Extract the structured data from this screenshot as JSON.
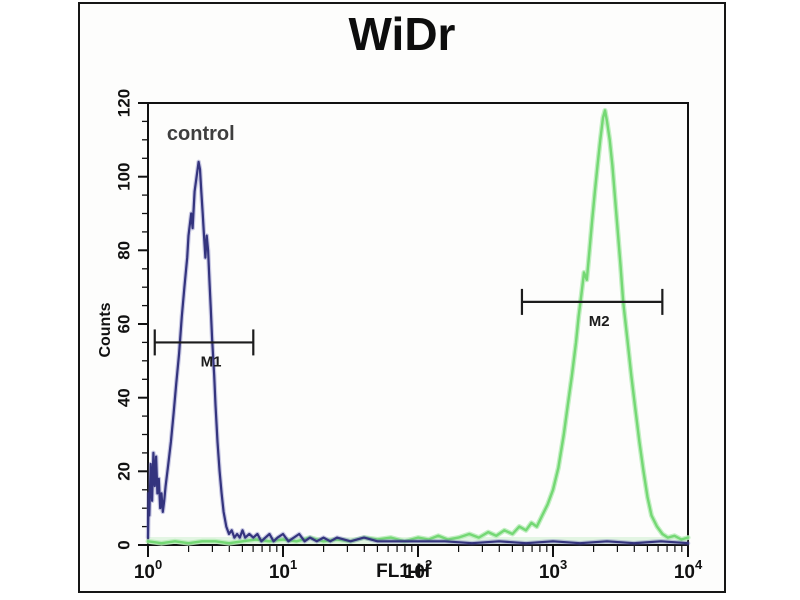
{
  "page": {
    "background": "#ffffff",
    "frame_border_color": "#161616",
    "frame_background": "#fdfdfc",
    "axis_color": "#111111"
  },
  "title": {
    "text": "WiDr"
  },
  "chart_data": {
    "type": "line",
    "subtype": "flow-cytometry-histogram",
    "title": "WiDr",
    "xlabel": "FL1-H",
    "ylabel": "Counts",
    "x_scale": "log10",
    "xlim": [
      1,
      10000
    ],
    "ylim": [
      0,
      120
    ],
    "x_major_tick_base": 10,
    "x_major_tick_exponents": [
      0,
      1,
      2,
      3,
      4
    ],
    "y_major_ticks": [
      0,
      20,
      40,
      60,
      80,
      100,
      120
    ],
    "y_minor_step": 5,
    "grid": false,
    "legend": "none",
    "baseline_band_color": "rgba(150,225,150,0.25)",
    "annotations": [
      {
        "text": "control",
        "x_log10": 0.14,
        "y_counts": 110,
        "color": "#3e3e3e"
      }
    ],
    "markers": [
      {
        "label": "M1",
        "x_from_log10": 0.05,
        "x_to_log10": 0.78,
        "y_counts": 55,
        "color": "#1c1c1c"
      },
      {
        "label": "M2",
        "x_from_log10": 2.77,
        "x_to_log10": 3.81,
        "y_counts": 66,
        "color": "#1c1c1c"
      }
    ],
    "series": [
      {
        "label": "control",
        "color": "#34347e",
        "glow": "rgba(100,100,180,0.35)",
        "points": [
          [
            0.0,
            2
          ],
          [
            0.005,
            14
          ],
          [
            0.01,
            8
          ],
          [
            0.02,
            22
          ],
          [
            0.03,
            12
          ],
          [
            0.04,
            25
          ],
          [
            0.05,
            16
          ],
          [
            0.06,
            24
          ],
          [
            0.07,
            14
          ],
          [
            0.08,
            18
          ],
          [
            0.09,
            10
          ],
          [
            0.1,
            14
          ],
          [
            0.11,
            9
          ],
          [
            0.12,
            12
          ],
          [
            0.13,
            16
          ],
          [
            0.15,
            22
          ],
          [
            0.17,
            28
          ],
          [
            0.19,
            36
          ],
          [
            0.21,
            44
          ],
          [
            0.23,
            52
          ],
          [
            0.25,
            62
          ],
          [
            0.27,
            70
          ],
          [
            0.29,
            78
          ],
          [
            0.3,
            84
          ],
          [
            0.32,
            90
          ],
          [
            0.33,
            86
          ],
          [
            0.345,
            96
          ],
          [
            0.36,
            100
          ],
          [
            0.375,
            104
          ],
          [
            0.385,
            102
          ],
          [
            0.395,
            96
          ],
          [
            0.405,
            90
          ],
          [
            0.415,
            84
          ],
          [
            0.425,
            78
          ],
          [
            0.435,
            84
          ],
          [
            0.445,
            80
          ],
          [
            0.455,
            72
          ],
          [
            0.465,
            64
          ],
          [
            0.475,
            56
          ],
          [
            0.49,
            46
          ],
          [
            0.5,
            38
          ],
          [
            0.515,
            28
          ],
          [
            0.53,
            20
          ],
          [
            0.545,
            14
          ],
          [
            0.56,
            9
          ],
          [
            0.58,
            5
          ],
          [
            0.6,
            3
          ],
          [
            0.62,
            4
          ],
          [
            0.64,
            2
          ],
          [
            0.66,
            3
          ],
          [
            0.68,
            2
          ],
          [
            0.7,
            4
          ],
          [
            0.72,
            2
          ],
          [
            0.75,
            3
          ],
          [
            0.78,
            2
          ],
          [
            0.81,
            3
          ],
          [
            0.84,
            1
          ],
          [
            0.87,
            2
          ],
          [
            0.9,
            3
          ],
          [
            0.93,
            1
          ],
          [
            0.96,
            2
          ],
          [
            1.0,
            3
          ],
          [
            1.04,
            1
          ],
          [
            1.08,
            2
          ],
          [
            1.12,
            3
          ],
          [
            1.16,
            1
          ],
          [
            1.2,
            2
          ],
          [
            1.25,
            1
          ],
          [
            1.3,
            2
          ],
          [
            1.35,
            1
          ],
          [
            1.4,
            2
          ],
          [
            1.5,
            1
          ],
          [
            1.6,
            2
          ],
          [
            1.7,
            1
          ],
          [
            1.8,
            1
          ],
          [
            1.9,
            1
          ],
          [
            2.0,
            1
          ],
          [
            2.2,
            1
          ],
          [
            2.4,
            0.5
          ],
          [
            2.6,
            1
          ],
          [
            2.8,
            0.5
          ],
          [
            3.0,
            1
          ],
          [
            3.2,
            0.5
          ],
          [
            3.4,
            1
          ],
          [
            3.6,
            0.5
          ],
          [
            3.8,
            1
          ],
          [
            4.0,
            0.5
          ]
        ]
      },
      {
        "label": "",
        "color": "#74d874",
        "glow": "rgba(185,236,185,0.85)",
        "points": [
          [
            0.0,
            1
          ],
          [
            0.1,
            0.5
          ],
          [
            0.2,
            1
          ],
          [
            0.3,
            0.5
          ],
          [
            0.4,
            1
          ],
          [
            0.5,
            1
          ],
          [
            0.6,
            0.5
          ],
          [
            0.7,
            1
          ],
          [
            0.8,
            1.5
          ],
          [
            0.9,
            1
          ],
          [
            1.0,
            1.5
          ],
          [
            1.1,
            1
          ],
          [
            1.2,
            2
          ],
          [
            1.3,
            1
          ],
          [
            1.4,
            1.5
          ],
          [
            1.5,
            1
          ],
          [
            1.6,
            2
          ],
          [
            1.7,
            1.5
          ],
          [
            1.8,
            2
          ],
          [
            1.9,
            1
          ],
          [
            2.0,
            2
          ],
          [
            2.08,
            1.5
          ],
          [
            2.15,
            2.5
          ],
          [
            2.22,
            1.5
          ],
          [
            2.3,
            2
          ],
          [
            2.38,
            3
          ],
          [
            2.45,
            2
          ],
          [
            2.52,
            3.5
          ],
          [
            2.58,
            2.5
          ],
          [
            2.64,
            4
          ],
          [
            2.7,
            3
          ],
          [
            2.75,
            5
          ],
          [
            2.8,
            4
          ],
          [
            2.84,
            6
          ],
          [
            2.88,
            5
          ],
          [
            2.92,
            8
          ],
          [
            2.96,
            11
          ],
          [
            3.0,
            15
          ],
          [
            3.04,
            21
          ],
          [
            3.08,
            30
          ],
          [
            3.11,
            38
          ],
          [
            3.14,
            46
          ],
          [
            3.17,
            55
          ],
          [
            3.19,
            62
          ],
          [
            3.21,
            68
          ],
          [
            3.23,
            74
          ],
          [
            3.25,
            72
          ],
          [
            3.27,
            80
          ],
          [
            3.29,
            88
          ],
          [
            3.31,
            96
          ],
          [
            3.33,
            103
          ],
          [
            3.35,
            110
          ],
          [
            3.37,
            116
          ],
          [
            3.385,
            118
          ],
          [
            3.4,
            115
          ],
          [
            3.42,
            110
          ],
          [
            3.44,
            103
          ],
          [
            3.46,
            94
          ],
          [
            3.48,
            85
          ],
          [
            3.5,
            76
          ],
          [
            3.52,
            66
          ],
          [
            3.55,
            56
          ],
          [
            3.58,
            46
          ],
          [
            3.61,
            37
          ],
          [
            3.64,
            28
          ],
          [
            3.67,
            20
          ],
          [
            3.7,
            13
          ],
          [
            3.73,
            8
          ],
          [
            3.77,
            5
          ],
          [
            3.81,
            3
          ],
          [
            3.85,
            2
          ],
          [
            3.9,
            2.5
          ],
          [
            3.95,
            1.5
          ],
          [
            4.0,
            2
          ]
        ]
      }
    ]
  }
}
